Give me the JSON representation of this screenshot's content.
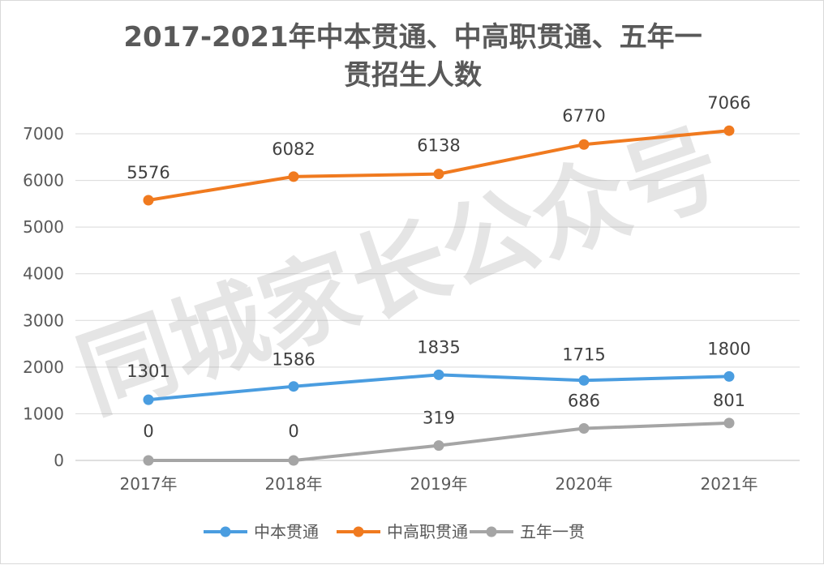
{
  "chart_data": {
    "type": "line",
    "title_lines": [
      "2017-2021年中本贯通、中高职贯通、五年一",
      "贯招生人数"
    ],
    "xlabel": "",
    "ylabel": "",
    "categories": [
      "2017年",
      "2018年",
      "2019年",
      "2020年",
      "2021年"
    ],
    "ylim": [
      0,
      7000
    ],
    "y_ticks": [
      0,
      1000,
      2000,
      3000,
      4000,
      5000,
      6000,
      7000
    ],
    "grid": true,
    "legend_position": "bottom",
    "series": [
      {
        "name": "中本贯通",
        "color": "#4a9de0",
        "values": [
          1301,
          1586,
          1835,
          1715,
          1800
        ]
      },
      {
        "name": "中高职贯通",
        "color": "#f07a1f",
        "values": [
          5576,
          6082,
          6138,
          6770,
          7066
        ]
      },
      {
        "name": "五年一贯",
        "color": "#a5a5a5",
        "values": [
          0,
          0,
          319,
          686,
          801
        ]
      }
    ]
  },
  "watermark": "同城家长公众号"
}
